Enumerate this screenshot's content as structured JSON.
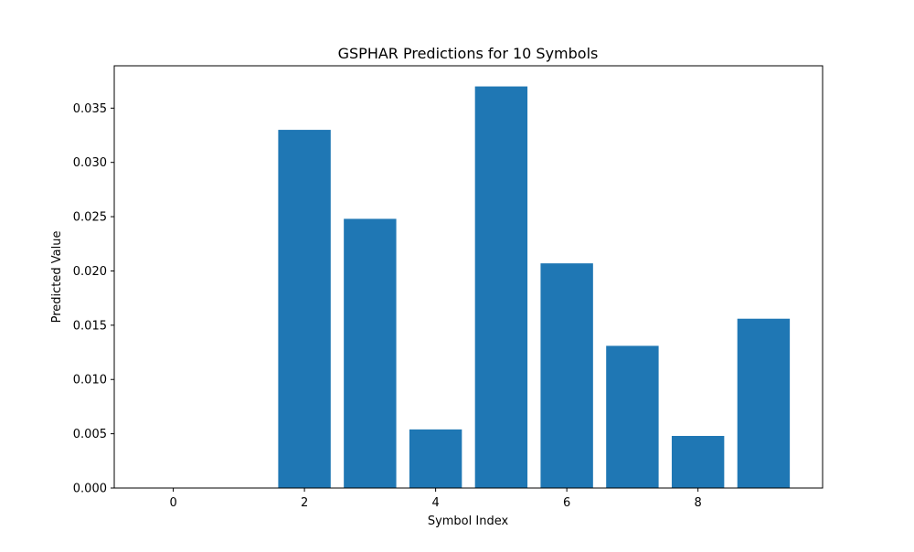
{
  "chart_data": {
    "type": "bar",
    "title": "GSPHAR Predictions for 10 Symbols",
    "xlabel": "Symbol Index",
    "ylabel": "Predicted Value",
    "x": [
      0,
      1,
      2,
      3,
      4,
      5,
      6,
      7,
      8,
      9
    ],
    "values": [
      0.0,
      0.0,
      0.033,
      0.0248,
      0.0054,
      0.037,
      0.0207,
      0.0131,
      0.0048,
      0.0156
    ],
    "xlim": [
      -0.9,
      9.9
    ],
    "ylim": [
      0,
      0.0389
    ],
    "xticks": [
      0,
      2,
      4,
      6,
      8
    ],
    "xtick_labels": [
      "0",
      "2",
      "4",
      "6",
      "8"
    ],
    "yticks": [
      0,
      0.005,
      0.01,
      0.015,
      0.02,
      0.025,
      0.03,
      0.035
    ],
    "ytick_labels": [
      "0.000",
      "0.005",
      "0.010",
      "0.015",
      "0.020",
      "0.025",
      "0.030",
      "0.035"
    ],
    "bar_color": "#1f77b4",
    "grid": false,
    "legend": "none"
  }
}
